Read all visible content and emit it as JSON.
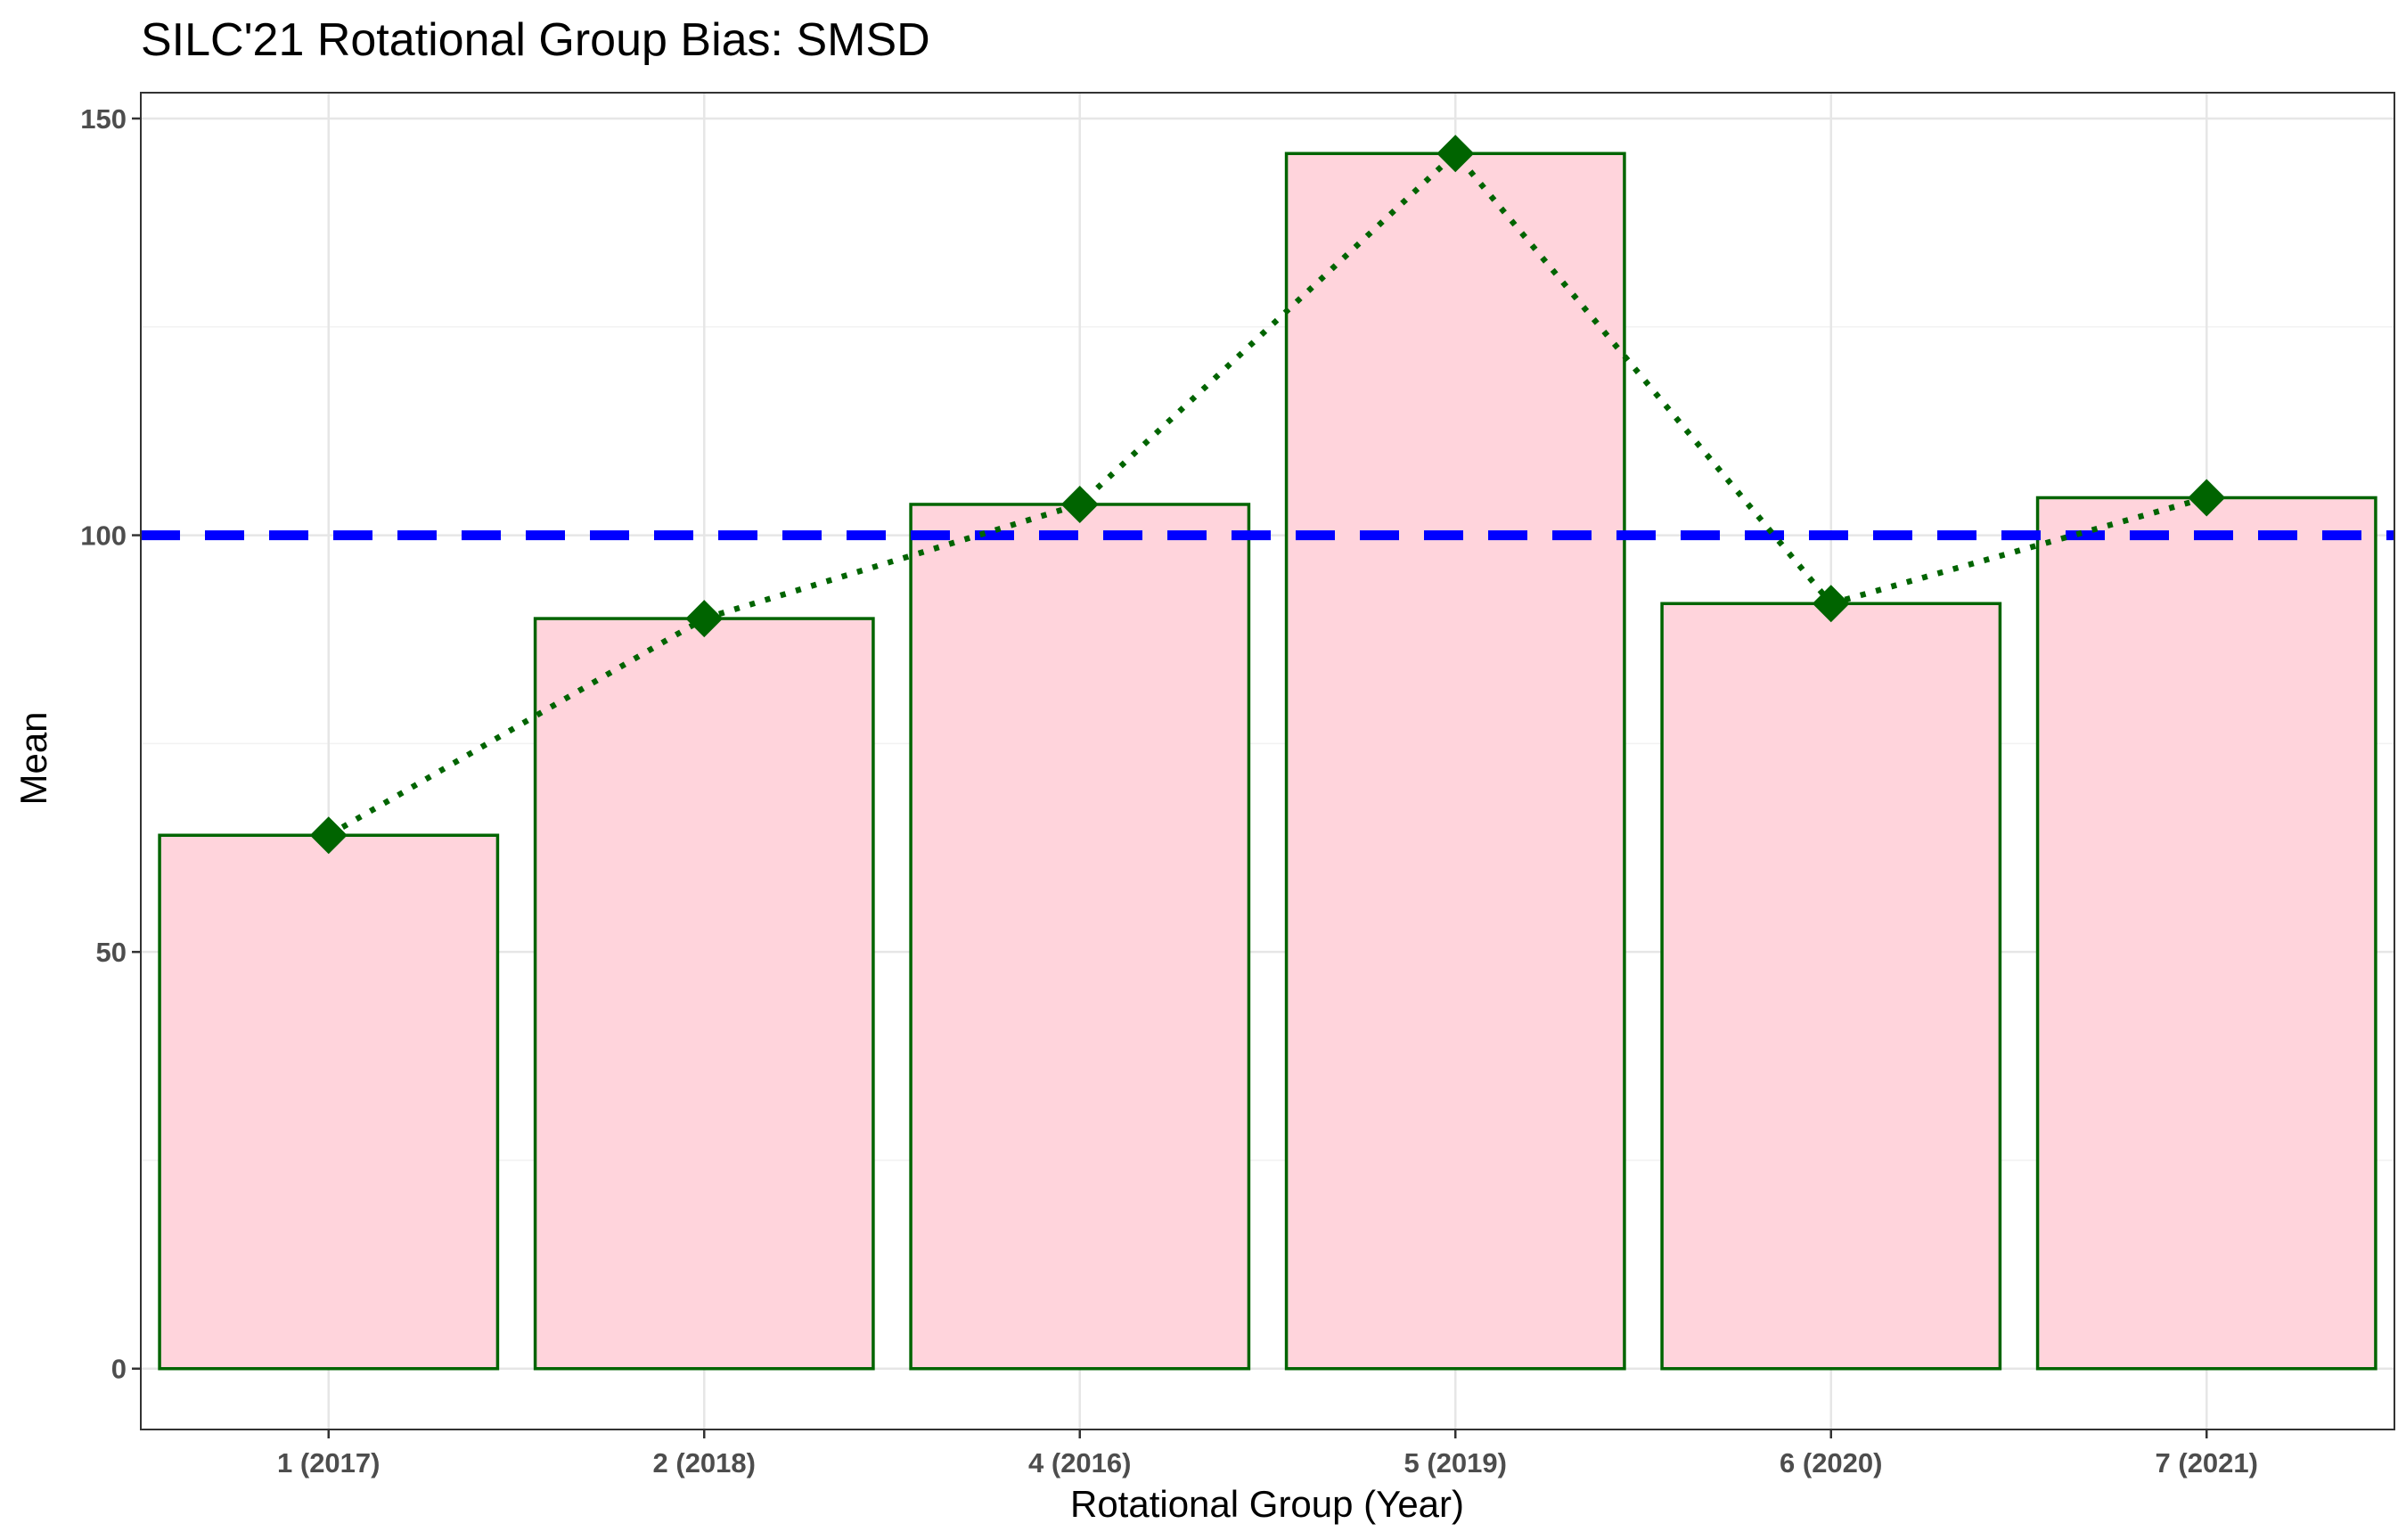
{
  "chart_data": {
    "type": "bar",
    "title": "SILC'21 Rotational Group Bias: SMSD",
    "xlabel": "Rotational Group (Year)",
    "ylabel": "Mean",
    "categories": [
      "1 (2017)",
      "2 (2018)",
      "4 (2016)",
      "5 (2019)",
      "6 (2020)",
      "7 (2021)"
    ],
    "values": [
      64,
      90,
      103.7,
      145.8,
      91.8,
      104.5
    ],
    "ylim": [
      -7.3,
      153.1
    ],
    "y_ticks": [
      0,
      50,
      100,
      150
    ],
    "y_tick_labels": [
      "0",
      "50",
      "100",
      "150"
    ],
    "reference_line": {
      "value": 100,
      "style": "dashed",
      "color": "#0000ff"
    },
    "overlay": {
      "type": "line",
      "line_style": "dotted",
      "marker": "diamond",
      "color": "#006400"
    },
    "bar_fill": "#ffd4dc",
    "bar_stroke": "#006400",
    "grid": true,
    "legend": "none"
  }
}
